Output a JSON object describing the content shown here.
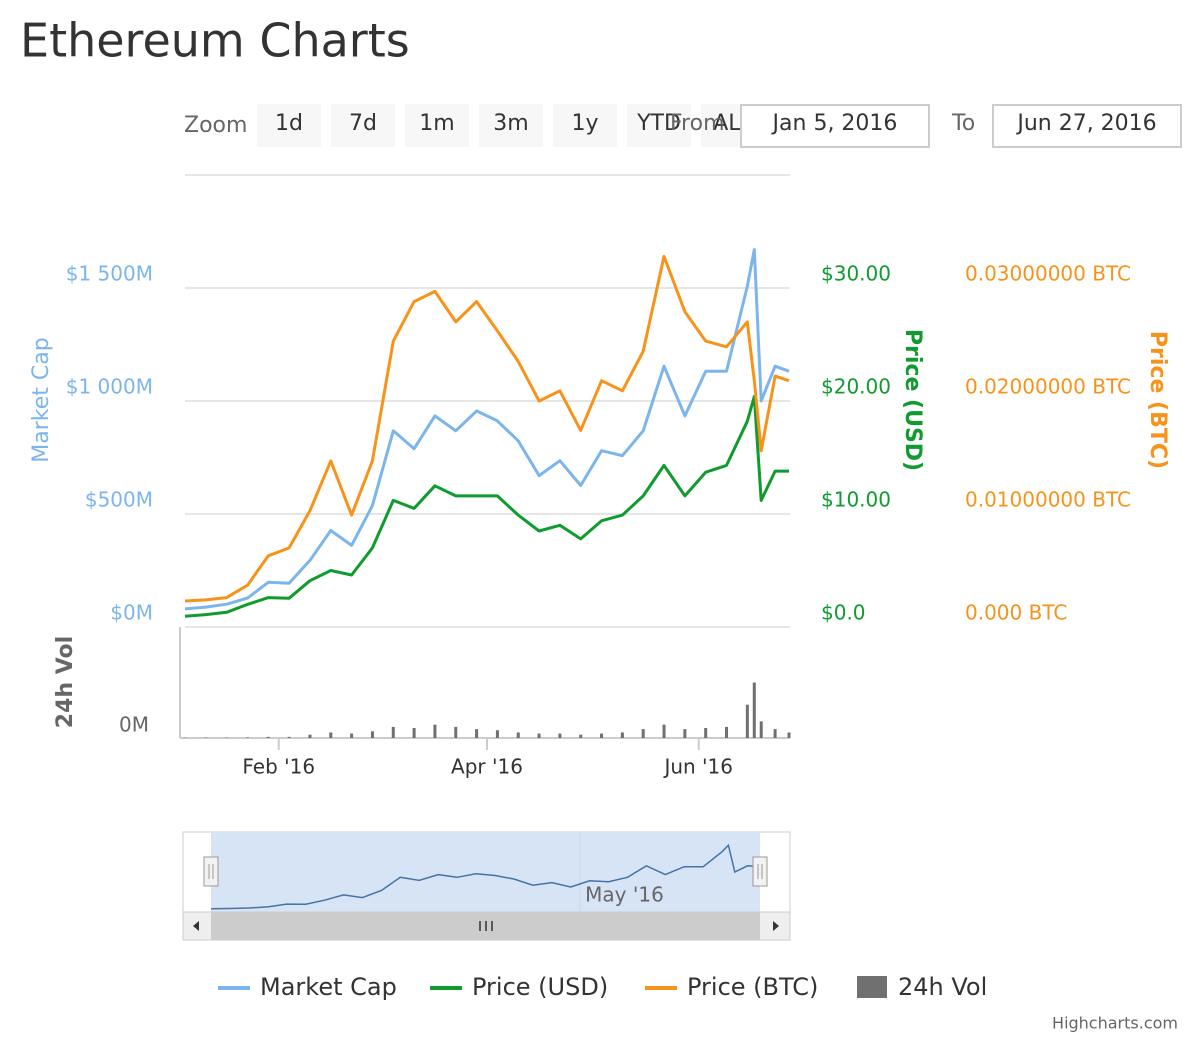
{
  "title": "Ethereum Charts",
  "range_selector": {
    "zoom_label": "Zoom",
    "buttons": [
      "1d",
      "7d",
      "1m",
      "3m",
      "1y",
      "YTD",
      "ALL"
    ],
    "from_label": "From",
    "from": "Jan 5, 2016",
    "to_label": "To",
    "to": "Jun 27, 2016"
  },
  "chart_data": {
    "type": "line",
    "x": [
      "2016-01-05",
      "2016-01-11",
      "2016-01-17",
      "2016-01-23",
      "2016-01-29",
      "2016-02-04",
      "2016-02-10",
      "2016-02-16",
      "2016-02-22",
      "2016-02-28",
      "2016-03-05",
      "2016-03-11",
      "2016-03-17",
      "2016-03-23",
      "2016-03-29",
      "2016-04-04",
      "2016-04-10",
      "2016-04-16",
      "2016-04-22",
      "2016-04-28",
      "2016-05-04",
      "2016-05-10",
      "2016-05-16",
      "2016-05-22",
      "2016-05-28",
      "2016-06-03",
      "2016-06-09",
      "2016-06-15",
      "2016-06-17",
      "2016-06-19",
      "2016-06-23",
      "2016-06-27"
    ],
    "xlim": [
      "2016-01-05",
      "2016-06-27"
    ],
    "xticks": [
      {
        "value": "2016-02-01",
        "label": "Feb '16"
      },
      {
        "value": "2016-04-01",
        "label": "Apr '16"
      },
      {
        "value": "2016-06-01",
        "label": "Jun '16"
      }
    ],
    "y_label": "Market Cap",
    "ylim": [
      0,
      2000
    ],
    "yticks": [
      {
        "value": 0,
        "label": "$0M"
      },
      {
        "value": 500,
        "label": "$500M"
      },
      {
        "value": 1000,
        "label": "$1 000M"
      },
      {
        "value": 1500,
        "label": "$1 500M"
      }
    ],
    "y2_label": "Price (USD)",
    "y2lim": [
      0,
      40
    ],
    "y2ticks": [
      {
        "value": 0,
        "label": "$0.0"
      },
      {
        "value": 10,
        "label": "$10.00"
      },
      {
        "value": 20,
        "label": "$20.00"
      },
      {
        "value": 30,
        "label": "$30.00"
      }
    ],
    "y3_label": "Price (BTC)",
    "y3lim": [
      0,
      0.04
    ],
    "y3ticks": [
      {
        "value": 0,
        "label": "0.000 BTC"
      },
      {
        "value": 0.01,
        "label": "0.01000000 BTC"
      },
      {
        "value": 0.02,
        "label": "0.02000000 BTC"
      },
      {
        "value": 0.03,
        "label": "0.03000000 BTC"
      }
    ],
    "volume_axis": {
      "label": "24h Vol",
      "ylim": [
        0,
        100
      ],
      "yticks": [
        {
          "value": 0,
          "label": "0M"
        }
      ]
    },
    "series": [
      {
        "name": "Market Cap",
        "color": "#7cb5ec",
        "values": [
          80,
          88,
          101,
          128,
          198,
          194,
          295,
          427,
          361,
          537,
          868,
          789,
          934,
          868,
          956,
          912,
          824,
          670,
          736,
          626,
          780,
          758,
          868,
          1154,
          934,
          1132,
          1132,
          1507,
          1670,
          1000,
          1154,
          1132
        ]
      },
      {
        "name": "Price (USD)",
        "color": "#0f9b2e",
        "axis": "y2",
        "values": [
          0.95,
          1.1,
          1.3,
          2.0,
          2.6,
          2.55,
          4.1,
          5.0,
          4.6,
          7.0,
          11.2,
          10.5,
          12.5,
          11.6,
          11.6,
          11.6,
          9.9,
          8.5,
          9.0,
          7.8,
          9.4,
          9.9,
          11.6,
          14.3,
          11.6,
          13.7,
          14.3,
          18.2,
          20.4,
          11.2,
          13.8,
          13.8
        ]
      },
      {
        "name": "Price (BTC)",
        "color": "#f7931a",
        "axis": "y3",
        "values": [
          0.0023,
          0.0024,
          0.0026,
          0.0037,
          0.0063,
          0.007,
          0.0103,
          0.0147,
          0.0099,
          0.0147,
          0.0253,
          0.0288,
          0.0297,
          0.027,
          0.0288,
          0.0262,
          0.0235,
          0.02,
          0.0209,
          0.0174,
          0.0218,
          0.0209,
          0.0244,
          0.0328,
          0.0279,
          0.0253,
          0.0248,
          0.027,
          0.0218,
          0.0156,
          0.0222,
          0.0218
        ]
      },
      {
        "name": "24h Vol",
        "color": "#707070",
        "type": "column",
        "axis": "volume",
        "values": [
          0.2,
          0.3,
          0.3,
          0.5,
          1,
          1,
          3,
          5,
          4,
          6,
          10,
          9,
          12,
          10,
          8,
          7,
          5,
          4,
          4,
          3,
          4,
          5,
          8,
          12,
          8,
          9,
          10,
          30,
          50,
          15,
          8,
          5
        ]
      }
    ],
    "navigator": {
      "xticks": [
        {
          "value": "2016-05-01",
          "label": "May '16"
        }
      ]
    },
    "credits": "Highcharts.com"
  }
}
